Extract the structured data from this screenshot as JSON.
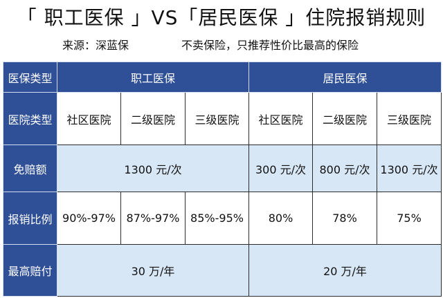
{
  "header": {
    "title": "「 职工医保 」VS「居民医保 」住院报销规则",
    "source": "来源：深蓝保",
    "slogan": "不卖保险，只推荐性价比最高的保险"
  },
  "table": {
    "columns": {
      "corner": "医保类型",
      "employee": "职工医保",
      "resident": "居民医保"
    },
    "rows": {
      "hospital_type": {
        "label": "医院类型",
        "values": [
          "社区医院",
          "二级医院",
          "三级医院",
          "社区医院",
          "二级医院",
          "三级医院"
        ]
      },
      "deductible": {
        "label": "免赔额",
        "employee": "1300 元/次",
        "resident": [
          "300 元/次",
          "800 元/次",
          "1300 元/次"
        ]
      },
      "reimbursement_ratio": {
        "label": "报销比例",
        "values": [
          "90%-97%",
          "87%-97%",
          "85%-95%",
          "80%",
          "78%",
          "75%"
        ]
      },
      "max_payout": {
        "label": "最高赔付",
        "employee": "30 万/年",
        "resident": "20 万/年"
      }
    }
  },
  "colors": {
    "header_blue": "#2f4f96",
    "light_blue": "#d8e7f6",
    "text": "#111111"
  }
}
